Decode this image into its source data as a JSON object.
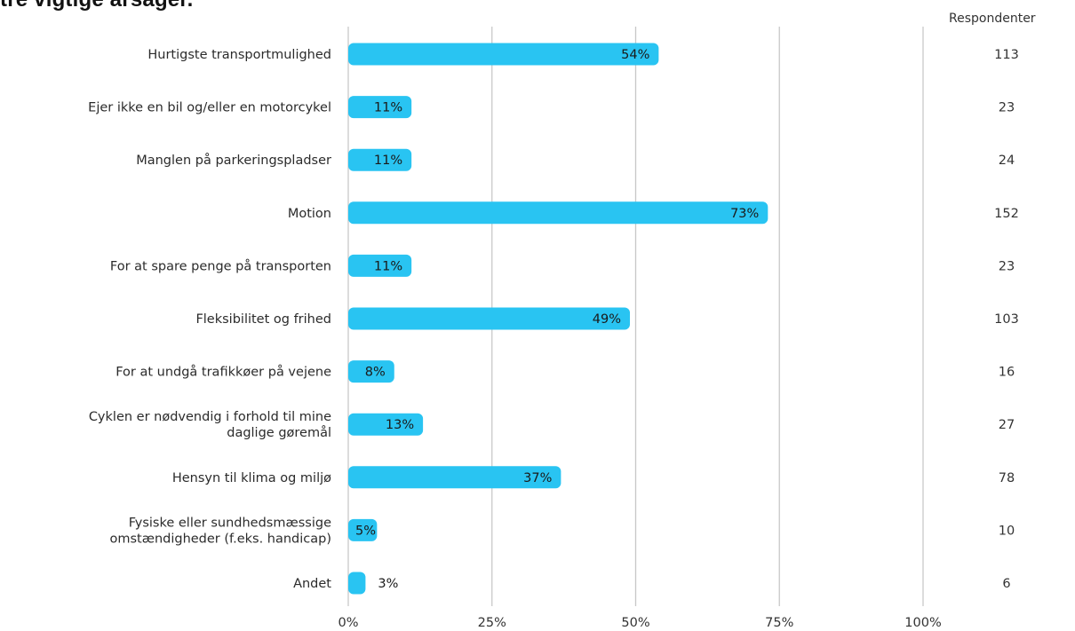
{
  "page": {
    "title": "tre vigtige årsager."
  },
  "respondents_header": "Respondenter",
  "colors": {
    "bar": "#29c4f2",
    "grid": "#c8c8c8",
    "label_text": "#2b2b2b",
    "bar_text": "#1a1a1a"
  },
  "chart_data": {
    "type": "bar",
    "orientation": "horizontal",
    "title": "tre vigtige årsager.",
    "xlabel": "",
    "ylabel": "",
    "xlim": [
      0,
      100
    ],
    "grid": true,
    "x_ticks": [
      "0%",
      "25%",
      "50%",
      "75%",
      "100%"
    ],
    "x_tick_values": [
      0,
      25,
      50,
      75,
      100
    ],
    "categories": [
      "Hurtigste transportmulighed",
      "Ejer ikke en bil og/eller en motorcykel",
      "Manglen på parkeringspladser",
      "Motion",
      "For at spare penge på transporten",
      "Fleksibilitet og frihed",
      "For at undgå trafikkøer på vejene",
      "Cyklen er nødvendig i forhold til mine daglige gøremål",
      "Hensyn til klima og miljø",
      "Fysiske eller sundhedsmæssige omstændigheder (f.eks. handicap)",
      "Andet"
    ],
    "category_lines": [
      [
        "Hurtigste transportmulighed"
      ],
      [
        "Ejer ikke en bil og/eller en motorcykel"
      ],
      [
        "Manglen på parkeringspladser"
      ],
      [
        "Motion"
      ],
      [
        "For at spare penge på transporten"
      ],
      [
        "Fleksibilitet og frihed"
      ],
      [
        "For at undgå trafikkøer på vejene"
      ],
      [
        "Cyklen er nødvendig i forhold til mine",
        "daglige gøremål"
      ],
      [
        "Hensyn til klima og miljø"
      ],
      [
        "Fysiske eller sundhedsmæssige",
        "omstændigheder (f.eks. handicap)"
      ],
      [
        "Andet"
      ]
    ],
    "values": [
      54,
      11,
      11,
      73,
      11,
      49,
      8,
      13,
      37,
      5,
      3
    ],
    "value_labels": [
      "54%",
      "11%",
      "11%",
      "73%",
      "11%",
      "49%",
      "8%",
      "13%",
      "37%",
      "5%",
      "3%"
    ],
    "respondents": [
      "113",
      "23",
      "24",
      "152",
      "23",
      "103",
      "16",
      "27",
      "78",
      "10",
      "6"
    ]
  }
}
